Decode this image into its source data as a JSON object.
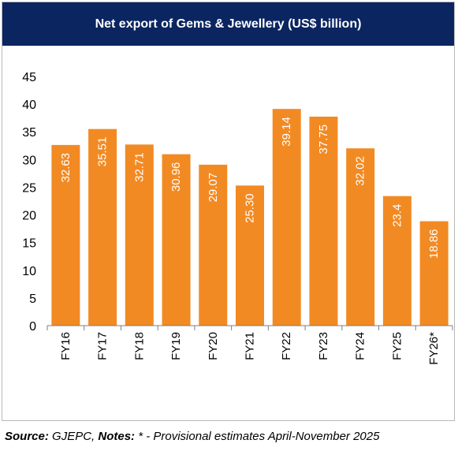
{
  "chart_data": {
    "type": "bar",
    "title": "Net export of Gems & Jewellery (US$ billion)",
    "categories": [
      "FY16",
      "FY17",
      "FY18",
      "FY19",
      "FY20",
      "FY21",
      "FY22",
      "FY23",
      "FY24",
      "FY25",
      "FY26*"
    ],
    "values": [
      32.63,
      35.51,
      32.71,
      30.96,
      29.07,
      25.3,
      39.14,
      37.75,
      32.02,
      23.4,
      18.86
    ],
    "value_labels": [
      "32.63",
      "35.51",
      "32.71",
      "30.96",
      "29.07",
      "25.30",
      "39.14",
      "37.75",
      "32.02",
      "23.4",
      "18.86"
    ],
    "ylim": [
      0,
      45
    ],
    "yticks": [
      "0",
      "5",
      "10",
      "15",
      "20",
      "25",
      "30",
      "35",
      "40",
      "45"
    ],
    "xlabel": "",
    "ylabel": "",
    "grid": false,
    "legend": "none",
    "bar_color": "#f28a23",
    "title_bg_color": "#0b2561"
  },
  "footer": {
    "source_label": "Source:",
    "source_text": " GJEPC, ",
    "notes_label": "Notes:",
    "notes_text": " * - Provisional estimates April-November 2025"
  }
}
